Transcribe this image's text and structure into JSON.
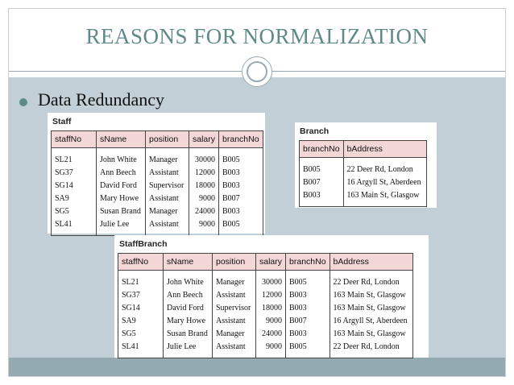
{
  "slide": {
    "title": "REASONS FOR NORMALIZATION",
    "bullet": "Data Redundancy"
  },
  "tables": {
    "staff": {
      "caption": "Staff",
      "columns": [
        "staffNo",
        "sName",
        "position",
        "salary",
        "branchNo"
      ],
      "rows": [
        [
          "SL21",
          "John White",
          "Manager",
          "30000",
          "B005"
        ],
        [
          "SG37",
          "Ann Beech",
          "Assistant",
          "12000",
          "B003"
        ],
        [
          "SG14",
          "David Ford",
          "Supervisor",
          "18000",
          "B003"
        ],
        [
          "SA9",
          "Mary Howe",
          "Assistant",
          "9000",
          "B007"
        ],
        [
          "SG5",
          "Susan Brand",
          "Manager",
          "24000",
          "B003"
        ],
        [
          "SL41",
          "Julie Lee",
          "Assistant",
          "9000",
          "B005"
        ]
      ]
    },
    "branch": {
      "caption": "Branch",
      "columns": [
        "branchNo",
        "bAddress"
      ],
      "rows": [
        [
          "B005",
          "22 Deer Rd, London"
        ],
        [
          "B007",
          "16 Argyll St, Aberdeen"
        ],
        [
          "B003",
          "163 Main St, Glasgow"
        ]
      ]
    },
    "staffbranch": {
      "caption": "StaffBranch",
      "columns": [
        "staffNo",
        "sName",
        "position",
        "salary",
        "branchNo",
        "bAddress"
      ],
      "rows": [
        [
          "SL21",
          "John White",
          "Manager",
          "30000",
          "B005",
          "22 Deer Rd, London"
        ],
        [
          "SG37",
          "Ann Beech",
          "Assistant",
          "12000",
          "B003",
          "163 Main St, Glasgow"
        ],
        [
          "SG14",
          "David Ford",
          "Supervisor",
          "18000",
          "B003",
          "163 Main St, Glasgow"
        ],
        [
          "SA9",
          "Mary Howe",
          "Assistant",
          "9000",
          "B007",
          "16 Argyll St, Aberdeen"
        ],
        [
          "SG5",
          "Susan Brand",
          "Manager",
          "24000",
          "B003",
          "163 Main St, Glasgow"
        ],
        [
          "SL41",
          "Julie Lee",
          "Assistant",
          "9000",
          "B005",
          "22 Deer Rd, London"
        ]
      ]
    }
  },
  "colors": {
    "title": "#5f8a88",
    "content_bg": "#c3cfd6",
    "footer_band": "#93aab0",
    "header_fill": "#f3d6d6",
    "bullet": "#5c8c87"
  }
}
